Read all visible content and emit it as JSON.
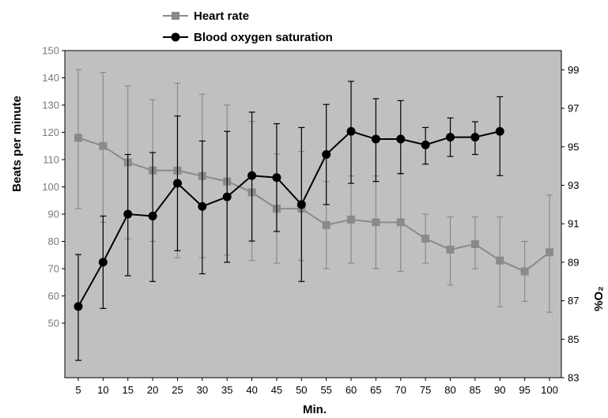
{
  "chart_data": {
    "type": "line",
    "x": [
      5,
      10,
      15,
      20,
      25,
      30,
      35,
      40,
      45,
      50,
      55,
      60,
      65,
      70,
      75,
      80,
      85,
      90,
      95,
      100
    ],
    "xlabel": "Min.",
    "ylabel": "Beats per minute",
    "y2label": "%O₂",
    "ylim": [
      30,
      150
    ],
    "y2lim": [
      83,
      100
    ],
    "y_ticks": [
      "50",
      "60",
      "70",
      "80",
      "90",
      "100",
      "110",
      "120",
      "130",
      "140",
      "150"
    ],
    "y2_ticks": [
      "83",
      "85",
      "87",
      "89",
      "91",
      "93",
      "95",
      "97",
      "99"
    ],
    "x_ticks": [
      "5",
      "10",
      "15",
      "20",
      "25",
      "30",
      "35",
      "40",
      "45",
      "50",
      "55",
      "60",
      "65",
      "70",
      "75",
      "80",
      "85",
      "90",
      "95",
      "100"
    ],
    "grid": false,
    "plot_background": "#c0c0c0",
    "legend_position": "top-center",
    "series": [
      {
        "name": "Heart rate",
        "axis": "left",
        "color": "#8a8a8a",
        "marker": "square",
        "values": [
          118,
          115,
          109,
          106,
          106,
          104,
          102,
          98,
          92,
          92,
          86,
          88,
          87,
          87,
          81,
          77,
          79,
          73,
          69,
          76
        ],
        "error_lower": [
          92,
          87,
          81,
          80,
          74,
          74,
          75,
          73,
          72,
          73,
          70,
          72,
          70,
          69,
          72,
          64,
          70,
          56,
          58,
          54
        ],
        "error_upper": [
          143,
          142,
          137,
          132,
          138,
          134,
          130,
          124,
          112,
          113,
          102,
          104,
          104,
          105,
          90,
          89,
          89,
          89,
          80,
          97
        ]
      },
      {
        "name": "Blood oxygen saturation",
        "axis": "right",
        "color": "#000000",
        "marker": "circle",
        "x": [
          5,
          10,
          15,
          20,
          25,
          30,
          35,
          40,
          45,
          50,
          55,
          60,
          65,
          70,
          75,
          80,
          85,
          90
        ],
        "values": [
          86.7,
          89.0,
          91.5,
          91.4,
          93.1,
          91.9,
          92.4,
          93.5,
          93.4,
          92.0,
          94.6,
          95.8,
          95.4,
          95.4,
          95.1,
          95.5,
          95.5,
          95.8
        ],
        "error_lower": [
          83.9,
          86.6,
          88.3,
          88.0,
          89.6,
          88.4,
          89.0,
          90.1,
          90.6,
          88.0,
          92.0,
          93.1,
          93.2,
          93.6,
          94.1,
          94.5,
          94.6,
          93.5
        ],
        "error_upper": [
          89.4,
          91.4,
          94.6,
          94.7,
          96.6,
          95.3,
          95.8,
          96.8,
          96.2,
          96.0,
          97.2,
          98.4,
          97.5,
          97.4,
          96.0,
          96.5,
          96.3,
          97.6
        ]
      }
    ]
  }
}
